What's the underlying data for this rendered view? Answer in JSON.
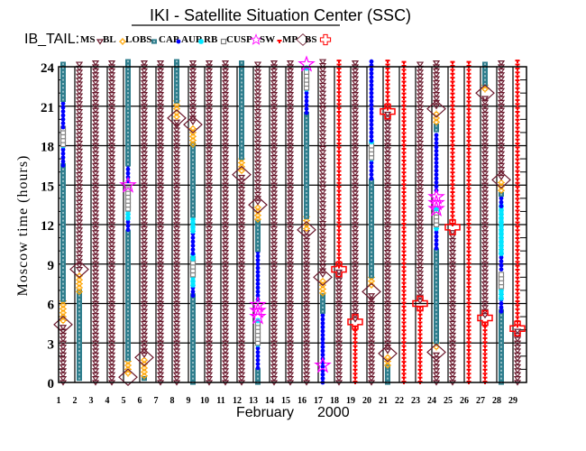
{
  "chart_data": {
    "type": "scatter",
    "title": "IKI - Satellite Situation Center (SSC)",
    "satellite_label": "IB_TAIL:",
    "xlabel_month": "February",
    "xlabel_year": "2000",
    "ylabel": "Moscow time (hours)",
    "xlim": [
      1,
      29.85
    ],
    "ylim": [
      0,
      24
    ],
    "x_ticks": [
      "1",
      "2",
      "3",
      "4",
      "5",
      "6",
      "7",
      "8",
      "9",
      "10",
      "11",
      "12",
      "13",
      "14",
      "15",
      "16",
      "17",
      "18",
      "19",
      "20",
      "21",
      "22",
      "23",
      "24",
      "25",
      "26",
      "27",
      "28",
      "29"
    ],
    "y_ticks": [
      "0",
      "3",
      "6",
      "9",
      "12",
      "15",
      "18",
      "21",
      "24"
    ],
    "grid": true,
    "legend": [
      {
        "key": "MS",
        "label": "MS"
      },
      {
        "key": "BL",
        "label": "BL"
      },
      {
        "key": "LOBS",
        "label": "LOBS"
      },
      {
        "key": "CAP",
        "label": "CAP"
      },
      {
        "key": "AUR",
        "label": "AUR"
      },
      {
        "key": "RB",
        "label": "RB"
      },
      {
        "key": "CUSP",
        "label": "CUSP"
      },
      {
        "key": "SW",
        "label": "SW"
      },
      {
        "key": "MP",
        "label": "MP"
      },
      {
        "key": "BS",
        "label": "BS"
      }
    ],
    "colors": {
      "MS": "#6b1a2e",
      "BL": "#ffa500",
      "LOBS": "#2e7d8c",
      "CAP": "#0000ff",
      "AUR": "#00e5ff",
      "RB": "#808080",
      "CUSP": "#ff00ff",
      "SW": "#ff0000",
      "MP": "#6b1a2e",
      "BS": "#ff0000"
    },
    "days": [
      {
        "day": 1,
        "segments": [
          [
            "MS",
            0,
            4.3
          ],
          [
            "MP",
            4.4,
            4.4
          ],
          [
            "BL",
            4.7,
            6.3
          ],
          [
            "LOBS",
            6.3,
            16.5
          ],
          [
            "CAP",
            16.5,
            17.8
          ],
          [
            "AUR",
            18,
            18
          ],
          [
            "RB",
            18.1,
            19.4
          ],
          [
            "CAP",
            19.4,
            21.3
          ],
          [
            "LOBS",
            21.5,
            24.4
          ]
        ]
      },
      {
        "day": 2,
        "segments": [
          [
            "LOBS",
            0.3,
            6.9
          ],
          [
            "BL",
            6.9,
            8.3
          ],
          [
            "MP",
            8.6,
            8.6
          ],
          [
            "MS",
            8.6,
            24.4
          ]
        ]
      },
      {
        "day": 3,
        "segments": [
          [
            "MS",
            0,
            24.4
          ]
        ]
      },
      {
        "day": 4,
        "segments": [
          [
            "MS",
            0,
            24.4
          ]
        ]
      },
      {
        "day": 5,
        "segments": [
          [
            "MP",
            0.4,
            0.4
          ],
          [
            "BL",
            0.7,
            1.8
          ],
          [
            "LOBS",
            1.8,
            11.6
          ],
          [
            "CAP",
            11.6,
            12.5
          ],
          [
            "AUR",
            12.5,
            13.2
          ],
          [
            "RB",
            13.2,
            14.8
          ],
          [
            "CUSP",
            15.0,
            15.0
          ],
          [
            "CAP",
            15.3,
            16.6
          ],
          [
            "LOBS",
            16.6,
            24.4
          ]
        ]
      },
      {
        "day": 6,
        "segments": [
          [
            "LOBS",
            0.3,
            0.3
          ],
          [
            "BL",
            0.5,
            1.7
          ],
          [
            "MP",
            1.9,
            1.9
          ],
          [
            "MS",
            2.1,
            24.4
          ]
        ]
      },
      {
        "day": 7,
        "segments": [
          [
            "MS",
            0,
            24.4
          ]
        ]
      },
      {
        "day": 8,
        "segments": [
          [
            "MS",
            0,
            20.0
          ],
          [
            "MP",
            20.1,
            20.1
          ],
          [
            "BL",
            20.2,
            21.4
          ],
          [
            "LOBS",
            21.4,
            24.4
          ]
        ]
      },
      {
        "day": 9,
        "segments": [
          [
            "LOBS",
            0,
            6.6
          ],
          [
            "CAP",
            6.6,
            7.4
          ],
          [
            "AUR",
            7.4,
            8.2
          ],
          [
            "RB",
            8.2,
            9.4
          ],
          [
            "AUR",
            9.4,
            9.8
          ],
          [
            "CAP",
            9.8,
            11.5
          ],
          [
            "AUR",
            11.5,
            12.7
          ],
          [
            "LOBS",
            12.7,
            18.1
          ],
          [
            "BL",
            18.1,
            19.3
          ],
          [
            "MP",
            19.6,
            19.6
          ],
          [
            "MS",
            19.8,
            24.4
          ]
        ]
      },
      {
        "day": 10,
        "segments": [
          [
            "MS",
            0,
            24.4
          ]
        ]
      },
      {
        "day": 11,
        "segments": [
          [
            "MS",
            0,
            24.4
          ]
        ]
      },
      {
        "day": 12,
        "segments": [
          [
            "MS",
            0,
            15.6
          ],
          [
            "MP",
            15.8,
            15.8
          ],
          [
            "BL",
            16.1,
            17.1
          ],
          [
            "LOBS",
            17.1,
            24.4
          ]
        ]
      },
      {
        "day": 13,
        "segments": [
          [
            "LOBS",
            0,
            1.1
          ],
          [
            "CAP",
            1.1,
            2.9
          ],
          [
            "AUR",
            2.9,
            2.9
          ],
          [
            "RB",
            3.0,
            4.5
          ],
          [
            "AUR",
            4.7,
            4.7
          ],
          [
            "CUSP",
            5.0,
            6.3
          ],
          [
            "CAP",
            6.3,
            10.1
          ],
          [
            "LOBS",
            10.1,
            12.4
          ],
          [
            "BL",
            12.4,
            13.4
          ],
          [
            "MP",
            13.5,
            13.5
          ],
          [
            "MS",
            13.7,
            24.4
          ]
        ]
      },
      {
        "day": 14,
        "segments": [
          [
            "MS",
            0,
            24.4
          ]
        ]
      },
      {
        "day": 15,
        "segments": [
          [
            "MS",
            0,
            24.4
          ]
        ]
      },
      {
        "day": 16,
        "segments": [
          [
            "MS",
            0,
            11.4
          ],
          [
            "MP",
            11.6,
            11.6
          ],
          [
            "BL",
            11.7,
            12.6
          ],
          [
            "LOBS",
            12.6,
            20.5
          ],
          [
            "CAP",
            20.5,
            22.1
          ],
          [
            "AUR",
            22.3,
            22.3
          ],
          [
            "RB",
            22.4,
            23.7
          ],
          [
            "AUR",
            23.9,
            23.9
          ],
          [
            "CUSP",
            24.2,
            24.2
          ]
        ]
      },
      {
        "day": 17,
        "segments": [
          [
            "CAP",
            0,
            5.4
          ],
          [
            "CUSP",
            1.3,
            1.3
          ],
          [
            "LOBS",
            5.4,
            6.8
          ],
          [
            "BL",
            6.8,
            7.7
          ],
          [
            "MP",
            8.0,
            8.0
          ],
          [
            "MS",
            8.2,
            24.4
          ]
        ]
      },
      {
        "day": 18,
        "segments": [
          [
            "MS",
            0,
            8.4
          ],
          [
            "BS",
            8.6,
            8.6
          ],
          [
            "SW",
            8.8,
            24.4
          ]
        ]
      },
      {
        "day": 19,
        "segments": [
          [
            "SW",
            0,
            4.4
          ],
          [
            "BS",
            4.6,
            4.6
          ],
          [
            "MS",
            4.8,
            24.4
          ]
        ]
      },
      {
        "day": 20,
        "segments": [
          [
            "MS",
            0,
            6.7
          ],
          [
            "MP",
            6.9,
            6.9
          ],
          [
            "BL",
            7.4,
            8.1
          ],
          [
            "LOBS",
            8.1,
            15.5
          ],
          [
            "CAP",
            15.5,
            16.9
          ],
          [
            "AUR",
            17.0,
            17.0
          ],
          [
            "RB",
            17.1,
            18.1
          ],
          [
            "AUR",
            18.3,
            18.3
          ],
          [
            "CAP",
            18.4,
            24.4
          ]
        ]
      },
      {
        "day": 21,
        "segments": [
          [
            "LOBS",
            0,
            1.2
          ],
          [
            "BL",
            1.3,
            1.9
          ],
          [
            "MP",
            2.2,
            2.2
          ],
          [
            "MS",
            2.4,
            20.4
          ],
          [
            "BS",
            20.6,
            20.6
          ],
          [
            "SW",
            20.8,
            24.4
          ]
        ]
      },
      {
        "day": 22,
        "segments": [
          [
            "SW",
            0,
            24.4
          ]
        ]
      },
      {
        "day": 23,
        "segments": [
          [
            "SW",
            0,
            5.8
          ],
          [
            "BS",
            6.0,
            6.0
          ],
          [
            "MS",
            6.2,
            24.4
          ]
        ]
      },
      {
        "day": 24,
        "segments": [
          [
            "MS",
            0,
            2.1
          ],
          [
            "MP",
            2.3,
            2.3
          ],
          [
            "BL",
            2.7,
            3.1
          ],
          [
            "LOBS",
            3.1,
            10.2
          ],
          [
            "CAP",
            10.2,
            11.6
          ],
          [
            "AUR",
            11.7,
            11.7
          ],
          [
            "RB",
            12.0,
            13.1
          ],
          [
            "AUR",
            13.2,
            13.2
          ],
          [
            "CUSP",
            13.2,
            14.5
          ],
          [
            "CAP",
            14.6,
            19.0
          ],
          [
            "LOBS",
            19.2,
            19.7
          ],
          [
            "BL",
            19.8,
            20.6
          ],
          [
            "MP",
            20.8,
            20.8
          ],
          [
            "MS",
            21.0,
            24.4
          ]
        ]
      },
      {
        "day": 25,
        "segments": [
          [
            "MS",
            0,
            11.6
          ],
          [
            "BS",
            11.8,
            11.8
          ],
          [
            "SW",
            12.0,
            24.4
          ]
        ]
      },
      {
        "day": 26,
        "segments": [
          [
            "SW",
            0,
            24.4
          ]
        ]
      },
      {
        "day": 27,
        "segments": [
          [
            "SW",
            0,
            4.7
          ],
          [
            "BS",
            4.9,
            4.9
          ],
          [
            "MS",
            5.1,
            21.8
          ],
          [
            "MP",
            22.0,
            22.0
          ],
          [
            "BL",
            22.3,
            22.7
          ],
          [
            "LOBS",
            22.7,
            24.4
          ]
        ]
      },
      {
        "day": 28,
        "segments": [
          [
            "LOBS",
            0,
            5.4
          ],
          [
            "CAP",
            5.4,
            6.4
          ],
          [
            "AUR",
            6.4,
            7.3
          ],
          [
            "RB",
            7.3,
            8.4
          ],
          [
            "CAP",
            8.6,
            9.8
          ],
          [
            "AUR",
            9.8,
            13.4
          ],
          [
            "CAP",
            13.4,
            14.1
          ],
          [
            "LOBS",
            14.3,
            14.5
          ],
          [
            "BL",
            14.6,
            15.3
          ],
          [
            "MP",
            15.4,
            15.4
          ],
          [
            "MS",
            15.6,
            24.4
          ]
        ]
      },
      {
        "day": 29,
        "segments": [
          [
            "MS",
            0,
            3.9
          ],
          [
            "BS",
            4.1,
            4.1
          ],
          [
            "SW",
            4.3,
            24.4
          ]
        ]
      }
    ]
  }
}
